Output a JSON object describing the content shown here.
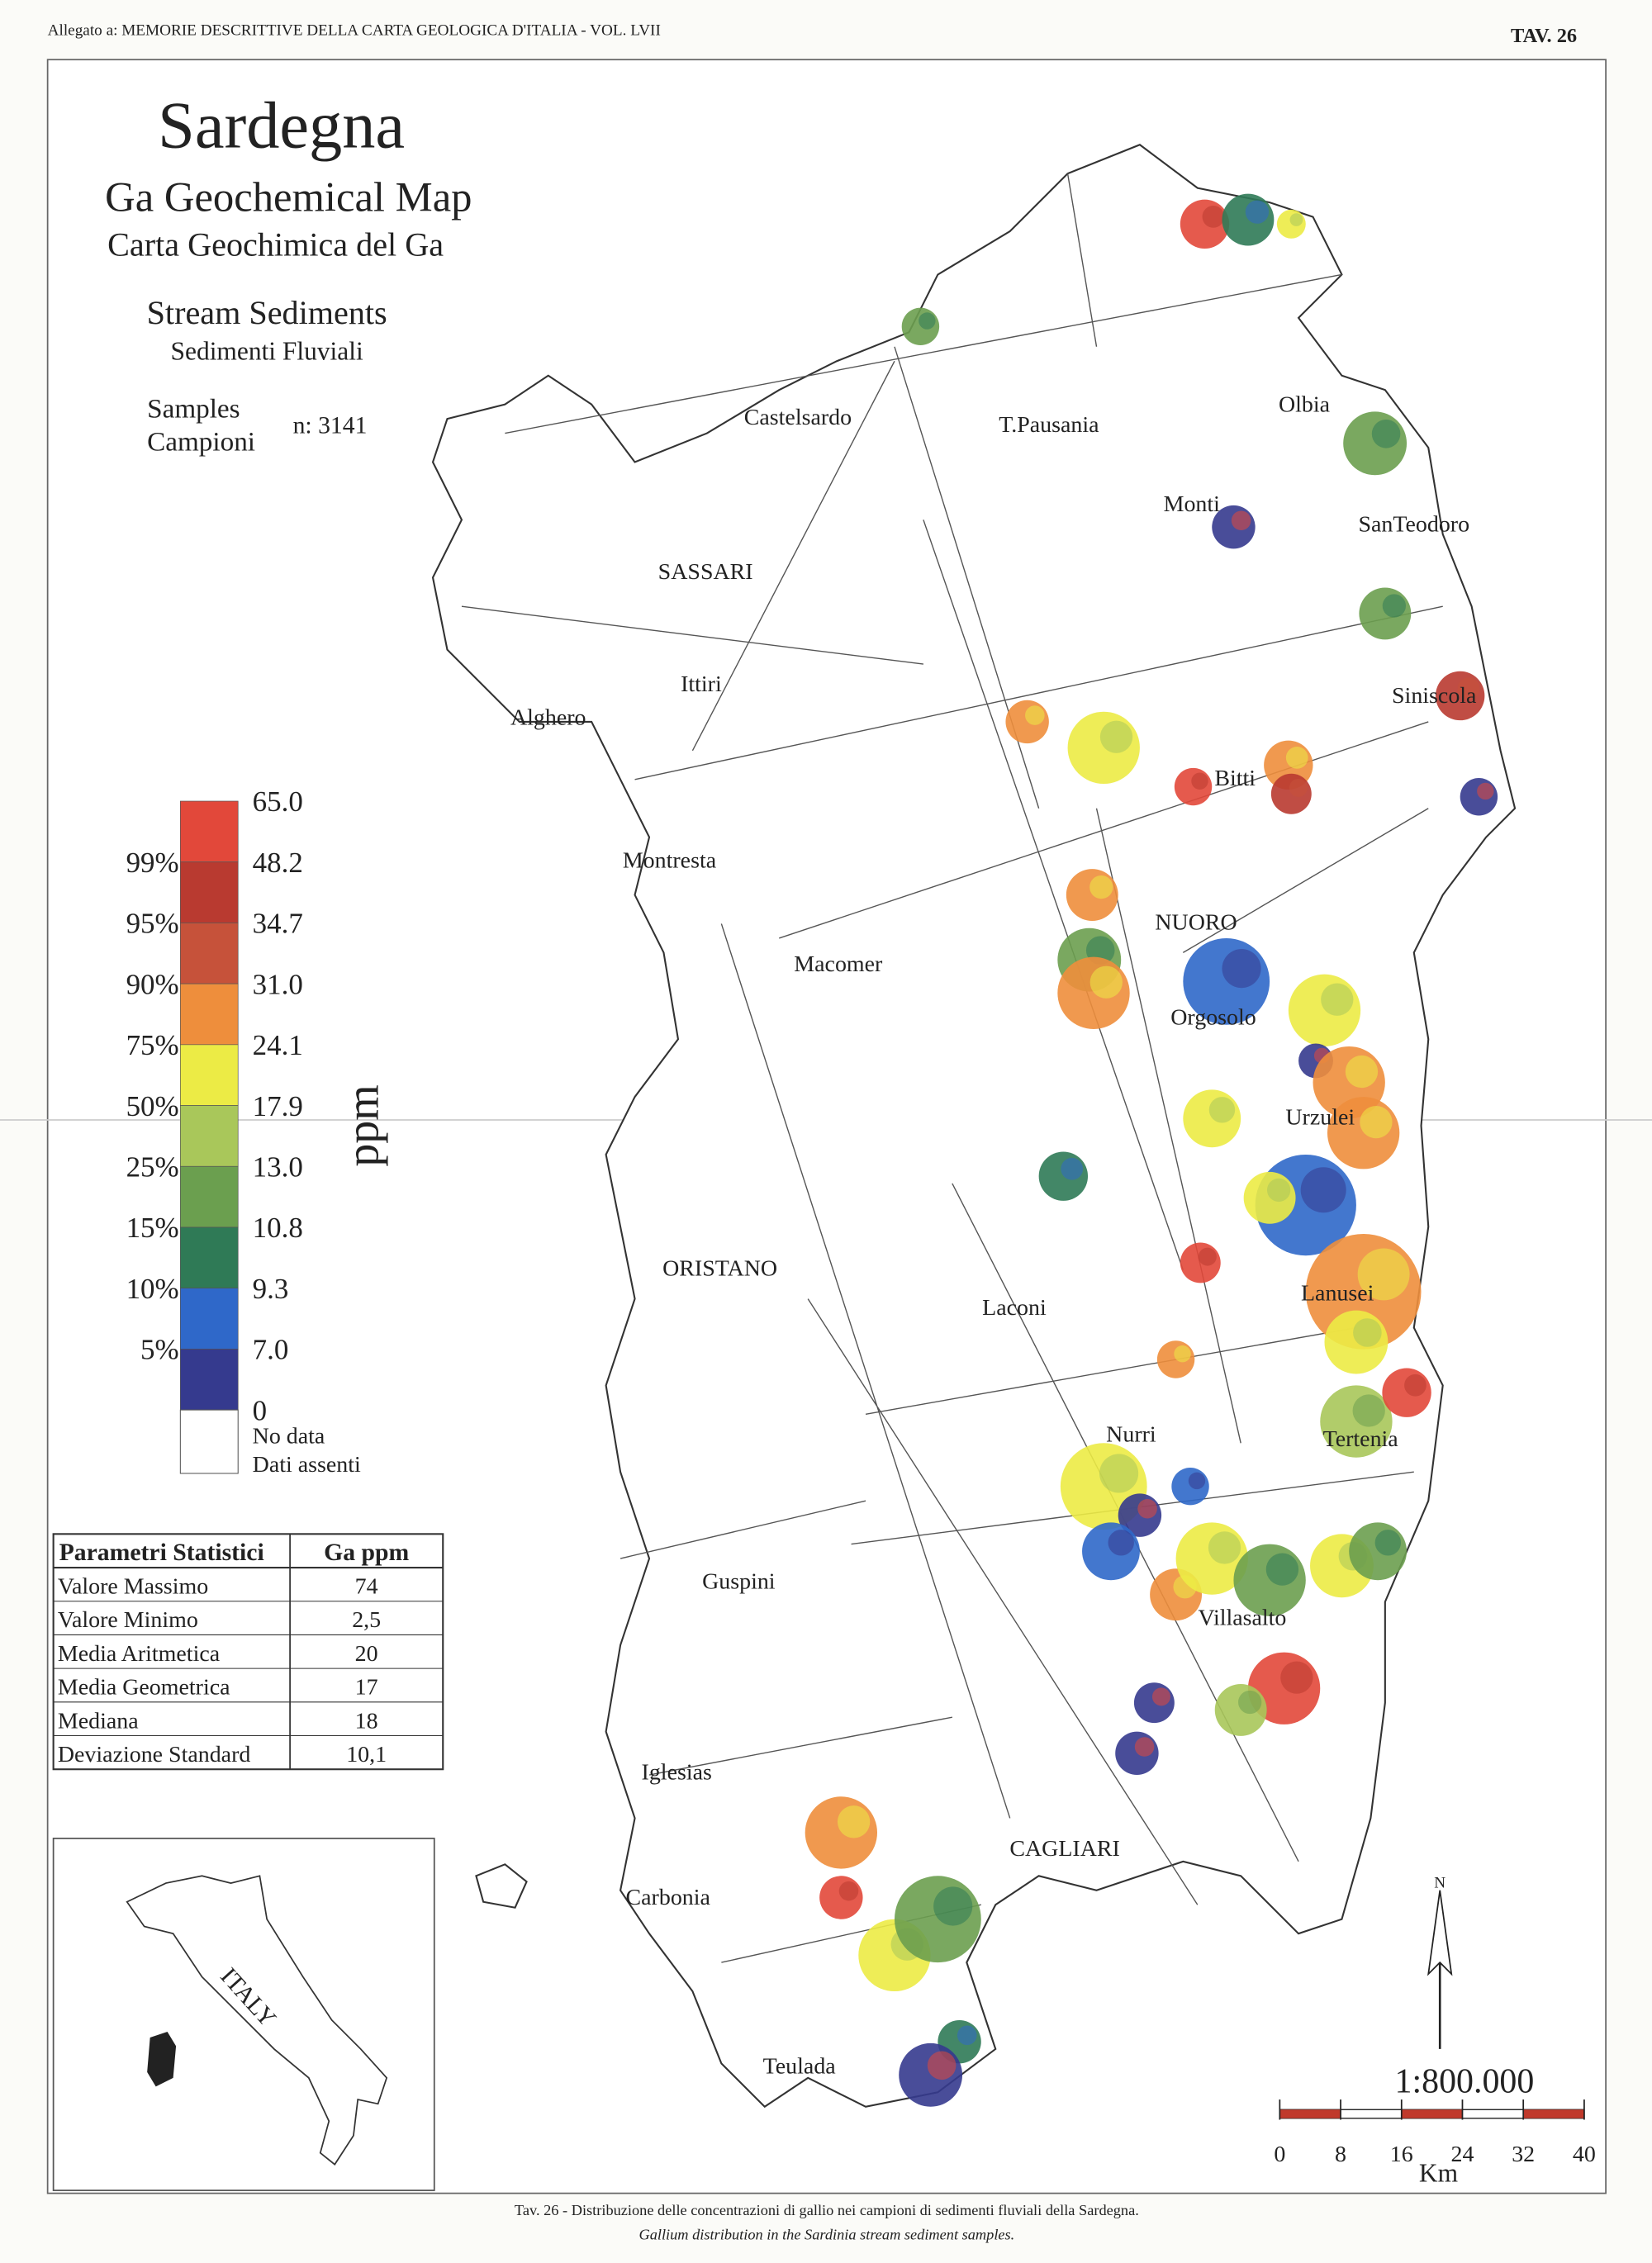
{
  "header": {
    "left": "Allegato a: MEMORIE DESCRITTIVE DELLA CARTA GEOLOGICA D'ITALIA - VOL. LVII",
    "right": "TAV. 26"
  },
  "title": {
    "region": "Sardegna",
    "map_en": "Ga Geochemical Map",
    "map_it": "Carta Geochimica del Ga",
    "medium_en": "Stream Sediments",
    "medium_it": "Sedimenti Fluviali",
    "samples_en": "Samples",
    "samples_it": "Campioni",
    "samples_n": "n: 3141"
  },
  "legend": {
    "values": [
      "65.0",
      "48.2",
      "34.7",
      "31.0",
      "24.1",
      "17.9",
      "13.0",
      "10.8",
      "9.3",
      "7.0",
      "0"
    ],
    "percentiles": [
      "99%",
      "95%",
      "90%",
      "75%",
      "50%",
      "25%",
      "15%",
      "10%",
      "5%"
    ],
    "colors": [
      "#e2483a",
      "#b93a30",
      "#c6523a",
      "#ee8e3c",
      "#eceb45",
      "#a9c75a",
      "#6b9f4f",
      "#2f7a56",
      "#2f68c9",
      "#353a8e"
    ],
    "unit": "ppm",
    "no_data": [
      "No data",
      "Dati assenti"
    ]
  },
  "table": {
    "header": [
      "Parametri Statistici",
      "Ga   ppm"
    ],
    "rows": [
      [
        "Valore Massimo",
        "74"
      ],
      [
        "Valore Minimo",
        "2,5"
      ],
      [
        "Media Aritmetica",
        "20"
      ],
      [
        "Media Geometrica",
        "17"
      ],
      [
        "Mediana",
        "18"
      ],
      [
        "Deviazione Standard",
        "10,1"
      ]
    ]
  },
  "inset": {
    "label": "ITALY"
  },
  "places": [
    "Castelsardo",
    "T.Pausania",
    "Olbia",
    "Monti",
    "SanTeodoro",
    "SASSARI",
    "Ittiri",
    "Alghero",
    "Siniscola",
    "Bitti",
    "Montresta",
    "NUORO",
    "Macomer",
    "Orgosolo",
    "Urzulei",
    "ORISTANO",
    "Laconi",
    "Lanusei",
    "Nurri",
    "Tertenia",
    "Guspini",
    "Villasalto",
    "Iglesias",
    "CAGLIARI",
    "Carbonia",
    "Teulada"
  ],
  "scale": {
    "ratio": "1:800.000",
    "ticks": [
      "0",
      "8",
      "16",
      "24",
      "32",
      "40"
    ],
    "unit": "Km",
    "north": "N"
  },
  "caption": {
    "it": "Tav. 26 - Distribuzione delle concentrazioni di gallio nei campioni di sedimenti fluviali della Sardegna.",
    "en": "Gallium distribution in the Sardinia stream sediment samples."
  }
}
